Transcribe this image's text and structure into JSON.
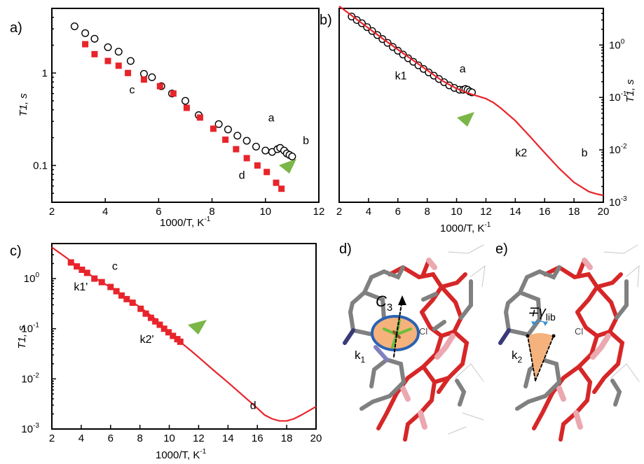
{
  "chart_data": [
    {
      "panel": "a)",
      "type": "scatter",
      "xlabel": "1000/T, K",
      "xlabel_sup": "-1",
      "ylabel": "T1, s",
      "xlim": [
        2,
        12
      ],
      "ylim": [
        0.04,
        5
      ],
      "yscale": "log",
      "xticks": [
        2,
        4,
        6,
        8,
        10,
        12
      ],
      "yticks": [
        {
          "v": 0.1,
          "t": "0.1"
        },
        {
          "v": 1,
          "t": "1"
        }
      ],
      "series": [
        {
          "id": "a",
          "marker": "open-circle",
          "color": "#000000",
          "x": [
            2.85,
            3.25,
            3.6,
            4.1,
            4.5,
            4.95,
            5.45,
            5.75,
            6.1,
            6.5,
            7.0,
            7.5,
            8.25,
            8.6,
            8.95,
            9.3,
            9.65,
            10.0,
            10.25,
            10.45,
            10.55,
            10.7,
            10.8,
            10.9,
            11.0
          ],
          "y": [
            3.2,
            2.7,
            2.35,
            1.9,
            1.7,
            1.35,
            0.98,
            0.9,
            0.72,
            0.6,
            0.5,
            0.35,
            0.28,
            0.245,
            0.21,
            0.185,
            0.16,
            0.145,
            0.14,
            0.15,
            0.155,
            0.145,
            0.135,
            0.13,
            0.125
          ]
        },
        {
          "id": "c, d",
          "marker": "filled-square",
          "color": "#e8242b",
          "x": [
            3.25,
            3.6,
            4.1,
            4.5,
            4.85,
            5.45,
            6.05,
            6.55,
            7.05,
            7.55,
            8.05,
            8.5,
            8.9,
            9.3,
            9.7,
            10.05,
            10.4,
            10.6
          ],
          "y": [
            2.05,
            1.6,
            1.35,
            1.2,
            1.0,
            0.85,
            0.72,
            0.6,
            0.42,
            0.33,
            0.25,
            0.19,
            0.15,
            0.12,
            0.1,
            0.085,
            0.065,
            0.056
          ]
        }
      ],
      "annotations": [
        {
          "text": "a",
          "x": 10.1,
          "y": 0.3
        },
        {
          "text": "b",
          "x": 11.4,
          "y": 0.17
        },
        {
          "text": "c",
          "x": 4.9,
          "y": 0.6
        },
        {
          "text": "d",
          "x": 9.0,
          "y": 0.072
        }
      ]
    },
    {
      "panel": "b)",
      "type": "line",
      "xlabel": "1000/T, K",
      "xlabel_sup": "-1",
      "ylabel": "T1, s",
      "xlim": [
        2,
        20
      ],
      "ylim": [
        0.001,
        5
      ],
      "yscale": "log",
      "y_axis_side": "right",
      "xticks": [
        2,
        4,
        6,
        8,
        10,
        12,
        14,
        16,
        18,
        20
      ],
      "yticks": [
        {
          "v": 0.001,
          "b": "10",
          "e": "-3"
        },
        {
          "v": 0.01,
          "b": "10",
          "e": "-2"
        },
        {
          "v": 0.1,
          "b": "10",
          "e": "-1"
        },
        {
          "v": 1,
          "b": "10",
          "e": "0"
        }
      ],
      "series": [
        {
          "id": "a",
          "marker": "open-circle",
          "color": "#000000",
          "x": [
            2.85,
            3.2,
            3.55,
            3.9,
            4.25,
            4.6,
            4.95,
            5.3,
            5.65,
            6.0,
            6.35,
            6.7,
            7.05,
            7.4,
            7.75,
            8.1,
            8.45,
            8.8,
            9.15,
            9.5,
            9.85,
            10.2,
            10.45,
            10.6,
            10.75,
            10.9,
            11.05
          ],
          "y": [
            3.5,
            3.0,
            2.6,
            2.2,
            1.85,
            1.55,
            1.3,
            1.1,
            0.92,
            0.78,
            0.66,
            0.56,
            0.48,
            0.41,
            0.35,
            0.3,
            0.26,
            0.225,
            0.195,
            0.17,
            0.152,
            0.14,
            0.14,
            0.145,
            0.14,
            0.13,
            0.125
          ]
        },
        {
          "id": "fit",
          "marker": "line",
          "color": "#e8242b",
          "x": [
            2.0,
            3,
            4,
            5,
            6,
            7,
            8,
            9,
            10,
            11,
            11.5,
            12,
            12.5,
            13,
            14,
            15,
            16,
            17,
            18,
            19,
            19.5,
            20
          ],
          "y": [
            5.5,
            3.4,
            2.1,
            1.3,
            0.82,
            0.52,
            0.33,
            0.21,
            0.148,
            0.115,
            0.105,
            0.095,
            0.08,
            0.063,
            0.036,
            0.018,
            0.0088,
            0.0044,
            0.0024,
            0.0016,
            0.00145,
            0.00135
          ]
        }
      ],
      "annotations": [
        {
          "text": "a",
          "x": 10.2,
          "y": 0.3
        },
        {
          "text": "k1",
          "x": 5.8,
          "y": 0.22
        },
        {
          "text": "k2",
          "x": 14.0,
          "y": 0.0075
        },
        {
          "text": "b",
          "x": 18.5,
          "y": 0.0075
        }
      ]
    },
    {
      "panel": "c)",
      "type": "line",
      "xlabel": "1000/T, K",
      "xlabel_sup": "-1",
      "ylabel": "T1, s",
      "xlim": [
        2,
        20
      ],
      "ylim": [
        0.001,
        5
      ],
      "yscale": "log",
      "xticks": [
        2,
        4,
        6,
        8,
        10,
        12,
        14,
        16,
        18,
        20
      ],
      "yticks": [
        {
          "v": 0.001,
          "b": "10",
          "e": "-3"
        },
        {
          "v": 0.01,
          "b": "10",
          "e": "-2"
        },
        {
          "v": 0.1,
          "b": "10",
          "e": "-1"
        },
        {
          "v": 1,
          "b": "10",
          "e": "0"
        }
      ],
      "series": [
        {
          "id": "c, d",
          "marker": "filled-square",
          "color": "#e8242b",
          "x": [
            3.3,
            3.7,
            4.05,
            4.4,
            4.9,
            5.4,
            6.0,
            6.4,
            6.75,
            7.1,
            7.5,
            8.05,
            8.4,
            8.75,
            9.05,
            9.35,
            9.65,
            9.95,
            10.25,
            10.55,
            10.75
          ],
          "y": [
            2.1,
            1.75,
            1.5,
            1.3,
            1.0,
            0.85,
            0.68,
            0.56,
            0.46,
            0.39,
            0.33,
            0.25,
            0.2,
            0.165,
            0.14,
            0.12,
            0.1,
            0.085,
            0.072,
            0.062,
            0.055
          ]
        },
        {
          "id": "fit",
          "marker": "line",
          "color": "#e8242b",
          "x": [
            2.0,
            3,
            4,
            5,
            6,
            7,
            8,
            9,
            10,
            10.8,
            11.5,
            12,
            13,
            14,
            15,
            16,
            16.5,
            17,
            17.5,
            18,
            18.5,
            19,
            19.5,
            20
          ],
          "y": [
            4.2,
            2.6,
            1.55,
            1.0,
            0.67,
            0.42,
            0.27,
            0.16,
            0.085,
            0.053,
            0.036,
            0.027,
            0.015,
            0.0085,
            0.0047,
            0.0026,
            0.0019,
            0.0016,
            0.00145,
            0.00145,
            0.0016,
            0.0019,
            0.0023,
            0.0028
          ]
        }
      ],
      "annotations": [
        {
          "text": "c",
          "x": 6.1,
          "y": 1.5
        },
        {
          "text": "k1'",
          "x": 3.5,
          "y": 0.58
        },
        {
          "text": "k2'",
          "x": 8.0,
          "y": 0.052
        },
        {
          "text": "d",
          "x": 15.5,
          "y": 0.0025
        }
      ]
    }
  ],
  "structures": [
    {
      "panel": "d)",
      "axis_label": "C",
      "axis_sub": "3",
      "rate_label": "k",
      "rate_sub": "1",
      "atom_label": "Cl"
    },
    {
      "panel": "e)",
      "angle_label": "∓γ",
      "angle_sub": "lib",
      "rate_label": "k",
      "rate_sub": "2",
      "atom_label": "Cl"
    }
  ],
  "colors": {
    "fit": "#e8242b",
    "marker_red": "#e8242b",
    "arrow": "#7ab648",
    "cone": "#f5b27c",
    "ring": "#2a62b2"
  }
}
